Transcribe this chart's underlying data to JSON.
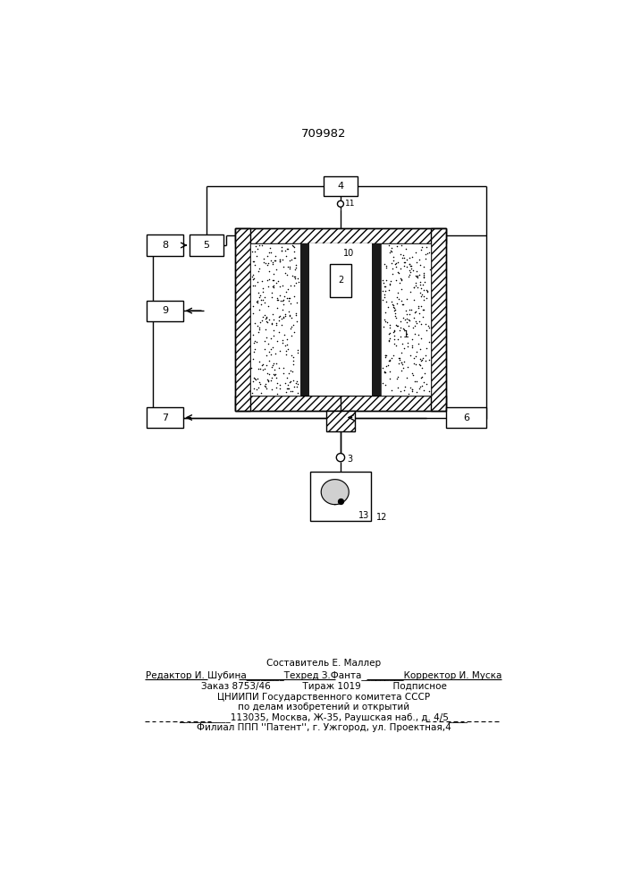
{
  "title": "709982",
  "bg_color": "#ffffff",
  "footer_lines": [
    "Составитель Е. Маллер",
    "Редактор И. Шубина________Техред З.Фанта_________Корректор И. Муска",
    "Заказ 8753/46           Тираж 1019           Подписное",
    "ЦНИИПИ Государственного комитета СССР",
    "по делам изобретений и открытий",
    "___________113035, Москва, Ж-35, Раушская наб., д. 4/5____",
    "Филиал ППП ''Патент'', г. Ужгород, ул. Проектная,4"
  ]
}
